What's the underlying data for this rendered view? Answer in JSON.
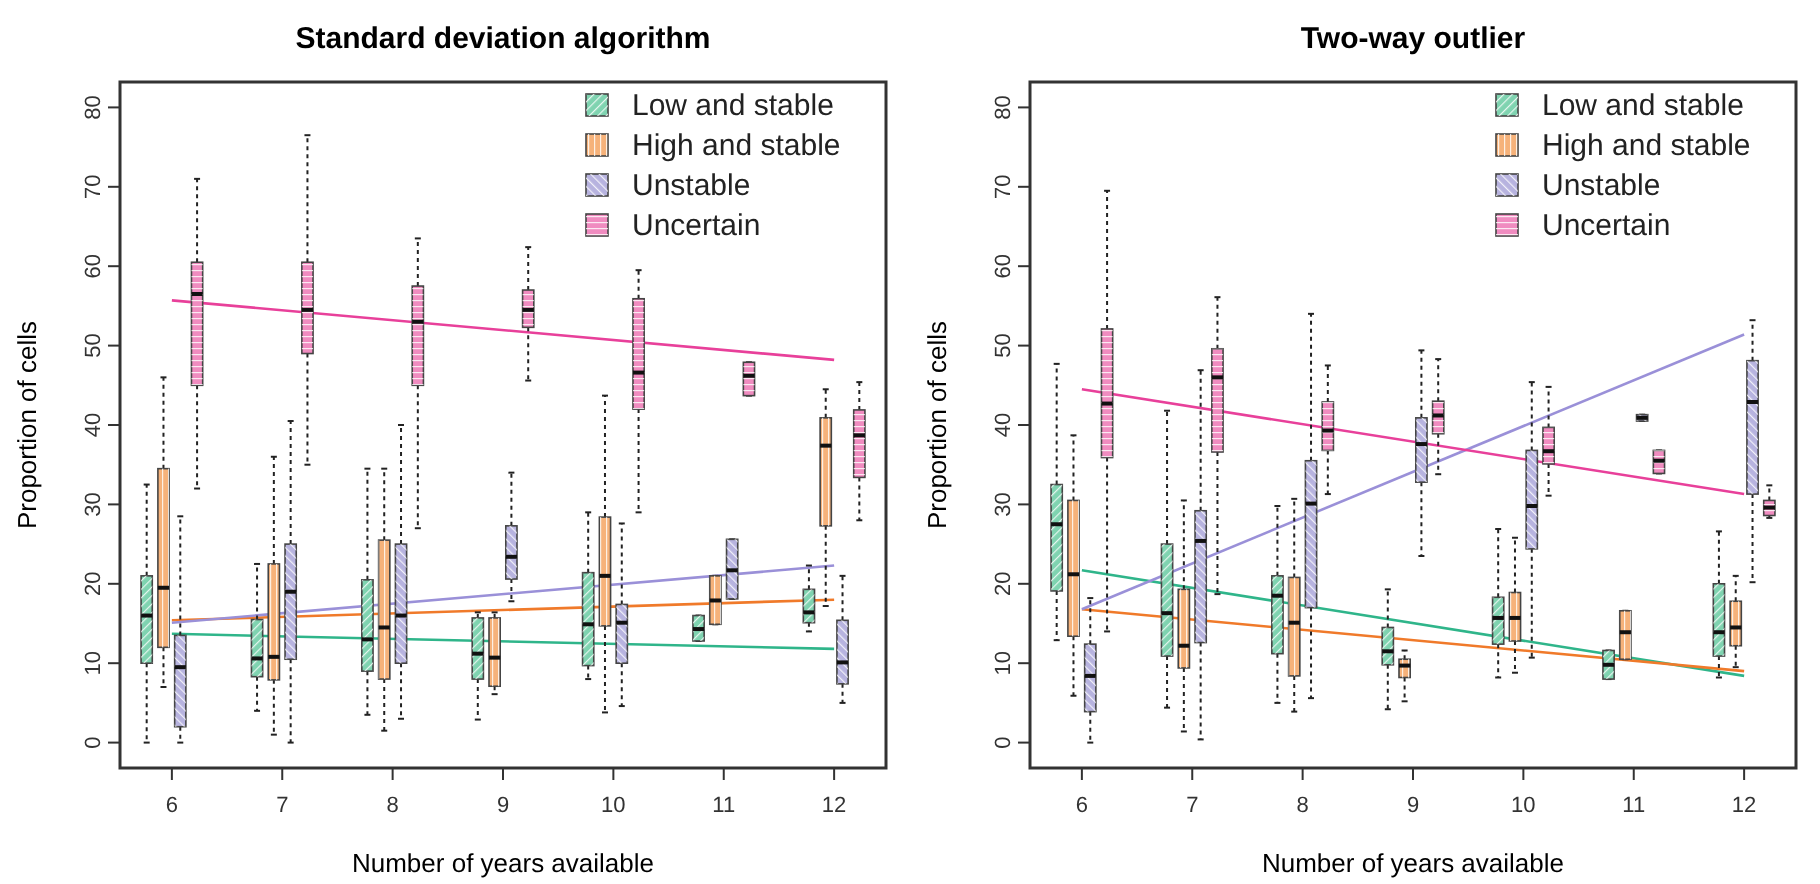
{
  "chart_data": [
    {
      "type": "box",
      "title": "Standard deviation algorithm",
      "xlabel": "Number of years available",
      "ylabel": "Proportion of cells",
      "categories": [
        "6",
        "7",
        "8",
        "9",
        "10",
        "11",
        "12"
      ],
      "ylim": [
        -3.2,
        83.2
      ],
      "yticks": [
        0,
        10,
        20,
        30,
        40,
        50,
        60,
        70,
        80
      ],
      "legend": "top right",
      "series": [
        {
          "name": "Low and stable",
          "color": "#7fd3b0",
          "boxes": [
            {
              "low": 0,
              "q1": 10,
              "median": 16,
              "q3": 21,
              "high": 32.5
            },
            {
              "low": 4,
              "q1": 8.3,
              "median": 10.6,
              "q3": 15.5,
              "high": 22.5
            },
            {
              "low": 3.5,
              "q1": 9,
              "median": 13,
              "q3": 20.5,
              "high": 34.5
            },
            {
              "low": 2.9,
              "q1": 8,
              "median": 11.2,
              "q3": 15.7,
              "high": 16.4
            },
            {
              "low": 8,
              "q1": 9.7,
              "median": 14.9,
              "q3": 21.4,
              "high": 29
            },
            {
              "low": 12.8,
              "q1": 12.8,
              "median": 14.3,
              "q3": 16,
              "high": 16
            },
            {
              "low": 14,
              "q1": 15.1,
              "median": 16.4,
              "q3": 19.3,
              "high": 22.3
            }
          ]
        },
        {
          "name": "High and stable",
          "color": "#f6b27a",
          "boxes": [
            {
              "low": 7,
              "q1": 12,
              "median": 19.5,
              "q3": 34.5,
              "high": 46
            },
            {
              "low": 1,
              "q1": 7.9,
              "median": 10.8,
              "q3": 22.5,
              "high": 36
            },
            {
              "low": 1.5,
              "q1": 8,
              "median": 14.5,
              "q3": 25.5,
              "high": 34.5
            },
            {
              "low": 6.1,
              "q1": 7.1,
              "median": 10.7,
              "q3": 15.7,
              "high": 16.4
            },
            {
              "low": 3.8,
              "q1": 14.7,
              "median": 21,
              "q3": 28.4,
              "high": 43.7
            },
            {
              "low": 14.9,
              "q1": 14.9,
              "median": 17.9,
              "q3": 21,
              "high": 21
            },
            {
              "low": 17.2,
              "q1": 27.3,
              "median": 37.4,
              "q3": 40.9,
              "high": 44.5
            }
          ]
        },
        {
          "name": "Unstable",
          "color": "#b7b3df",
          "boxes": [
            {
              "low": 0,
              "q1": 2,
              "median": 9.5,
              "q3": 13.5,
              "high": 28.5
            },
            {
              "low": 0,
              "q1": 10.5,
              "median": 19,
              "q3": 25,
              "high": 40.5
            },
            {
              "low": 3,
              "q1": 10,
              "median": 16,
              "q3": 25,
              "high": 40
            },
            {
              "low": 17.8,
              "q1": 20.6,
              "median": 23.4,
              "q3": 27.3,
              "high": 34
            },
            {
              "low": 4.6,
              "q1": 10,
              "median": 15.1,
              "q3": 17.4,
              "high": 27.6
            },
            {
              "low": 18.1,
              "q1": 18.1,
              "median": 21.7,
              "q3": 25.6,
              "high": 25.6
            },
            {
              "low": 5,
              "q1": 7.4,
              "median": 10.1,
              "q3": 15.4,
              "high": 21
            }
          ]
        },
        {
          "name": "Uncertain",
          "color": "#f08cc0",
          "boxes": [
            {
              "low": 32,
              "q1": 45,
              "median": 56.5,
              "q3": 60.5,
              "high": 71
            },
            {
              "low": 35,
              "q1": 49,
              "median": 54.5,
              "q3": 60.5,
              "high": 76.5
            },
            {
              "low": 27,
              "q1": 45,
              "median": 53,
              "q3": 57.5,
              "high": 63.5
            },
            {
              "low": 45.6,
              "q1": 52.3,
              "median": 54.5,
              "q3": 57,
              "high": 62.4
            },
            {
              "low": 29,
              "q1": 42,
              "median": 46.6,
              "q3": 55.9,
              "high": 59.5
            },
            {
              "low": 43.7,
              "q1": 43.7,
              "median": 46.2,
              "q3": 47.9,
              "high": 47.9
            },
            {
              "low": 28,
              "q1": 33.4,
              "median": 38.7,
              "q3": 41.9,
              "high": 45.4
            }
          ]
        },
        {
          "type": "line",
          "color": "#2fb58a",
          "x": [
            "6",
            "12"
          ],
          "values": [
            13.7,
            11.8
          ]
        },
        {
          "type": "line",
          "color": "#f07a2a",
          "x": [
            "6",
            "12"
          ],
          "values": [
            15.4,
            18
          ]
        },
        {
          "type": "line",
          "color": "#9a90d8",
          "x": [
            "6",
            "12"
          ],
          "values": [
            15.1,
            22.3
          ]
        },
        {
          "type": "line",
          "color": "#e8409a",
          "x": [
            "6",
            "12"
          ],
          "values": [
            55.7,
            48.2
          ]
        }
      ]
    },
    {
      "type": "box",
      "title": "Two-way outlier",
      "xlabel": "Number of years available",
      "ylabel": "Proportion of cells",
      "categories": [
        "6",
        "7",
        "8",
        "9",
        "10",
        "11",
        "12"
      ],
      "ylim": [
        -3.2,
        83.2
      ],
      "yticks": [
        0,
        10,
        20,
        30,
        40,
        50,
        60,
        70,
        80
      ],
      "legend": "top right",
      "series": [
        {
          "name": "Low and stable",
          "color": "#7fd3b0",
          "boxes": [
            {
              "low": 12.9,
              "q1": 19.1,
              "median": 27.5,
              "q3": 32.5,
              "high": 47.7
            },
            {
              "low": 4.4,
              "q1": 10.9,
              "median": 16.3,
              "q3": 25,
              "high": 41.8
            },
            {
              "low": 5,
              "q1": 11.2,
              "median": 18.5,
              "q3": 21,
              "high": 29.8
            },
            {
              "low": 4.2,
              "q1": 9.8,
              "median": 11.5,
              "q3": 14.5,
              "high": 19.3
            },
            {
              "low": 8.2,
              "q1": 12.4,
              "median": 15.7,
              "q3": 18.3,
              "high": 26.9
            },
            {
              "low": 8,
              "q1": 8,
              "median": 9.8,
              "q3": 11.6,
              "high": 11.6
            },
            {
              "low": 8.2,
              "q1": 10.9,
              "median": 13.9,
              "q3": 20,
              "high": 26.6
            }
          ]
        },
        {
          "name": "High and stable",
          "color": "#f6b27a",
          "boxes": [
            {
              "low": 5.9,
              "q1": 13.4,
              "median": 21.2,
              "q3": 30.5,
              "high": 38.7
            },
            {
              "low": 1.4,
              "q1": 9.4,
              "median": 12.2,
              "q3": 19.3,
              "high": 30.5
            },
            {
              "low": 3.9,
              "q1": 8.4,
              "median": 15.1,
              "q3": 20.8,
              "high": 30.7
            },
            {
              "low": 5.2,
              "q1": 8.2,
              "median": 9.7,
              "q3": 10.5,
              "high": 11.6
            },
            {
              "low": 8.8,
              "q1": 12.8,
              "median": 15.7,
              "q3": 18.9,
              "high": 25.8
            },
            {
              "low": 10.5,
              "q1": 10.5,
              "median": 13.9,
              "q3": 16.6,
              "high": 16.6
            },
            {
              "low": 9.5,
              "q1": 12.2,
              "median": 14.5,
              "q3": 17.8,
              "high": 21
            }
          ]
        },
        {
          "name": "Unstable",
          "color": "#b7b3df",
          "boxes": [
            {
              "low": 0,
              "q1": 3.9,
              "median": 8.4,
              "q3": 12.4,
              "high": 18.2
            },
            {
              "low": 0.4,
              "q1": 12.6,
              "median": 25.4,
              "q3": 29.2,
              "high": 46.9
            },
            {
              "low": 5.6,
              "q1": 17,
              "median": 30.1,
              "q3": 35.5,
              "high": 54
            },
            {
              "low": 23.5,
              "q1": 32.8,
              "median": 37.6,
              "q3": 40.9,
              "high": 49.4
            },
            {
              "low": 10.7,
              "q1": 24.4,
              "median": 29.8,
              "q3": 36.8,
              "high": 45.4
            },
            {
              "low": 40.5,
              "q1": 40.5,
              "median": 40.9,
              "q3": 41.3,
              "high": 41.3
            },
            {
              "low": 20.2,
              "q1": 31.3,
              "median": 42.9,
              "q3": 48.1,
              "high": 53.2
            }
          ]
        },
        {
          "name": "Uncertain",
          "color": "#f08cc0",
          "boxes": [
            {
              "low": 14,
              "q1": 35.9,
              "median": 42.7,
              "q3": 52.1,
              "high": 69.5
            },
            {
              "low": 18.7,
              "q1": 36.6,
              "median": 46,
              "q3": 49.6,
              "high": 56.1
            },
            {
              "low": 31.3,
              "q1": 36.8,
              "median": 39.3,
              "q3": 42.9,
              "high": 47.5
            },
            {
              "low": 33.8,
              "q1": 38.9,
              "median": 41.2,
              "q3": 43,
              "high": 48.3
            },
            {
              "low": 31.1,
              "q1": 35.1,
              "median": 36.7,
              "q3": 39.7,
              "high": 44.8
            },
            {
              "low": 33.9,
              "q1": 33.9,
              "median": 35.5,
              "q3": 36.8,
              "high": 36.8
            },
            {
              "low": 28.3,
              "q1": 28.6,
              "median": 29.6,
              "q3": 30.5,
              "high": 32.4
            }
          ]
        },
        {
          "type": "line",
          "color": "#2fb58a",
          "x": [
            "6",
            "12"
          ],
          "values": [
            21.7,
            8.4
          ]
        },
        {
          "type": "line",
          "color": "#f07a2a",
          "x": [
            "6",
            "12"
          ],
          "values": [
            16.8,
            9
          ]
        },
        {
          "type": "line",
          "color": "#9a90d8",
          "x": [
            "6",
            "12"
          ],
          "values": [
            16.8,
            51.4
          ]
        },
        {
          "type": "line",
          "color": "#e8409a",
          "x": [
            "6",
            "12"
          ],
          "values": [
            44.5,
            31.3
          ]
        }
      ]
    }
  ]
}
